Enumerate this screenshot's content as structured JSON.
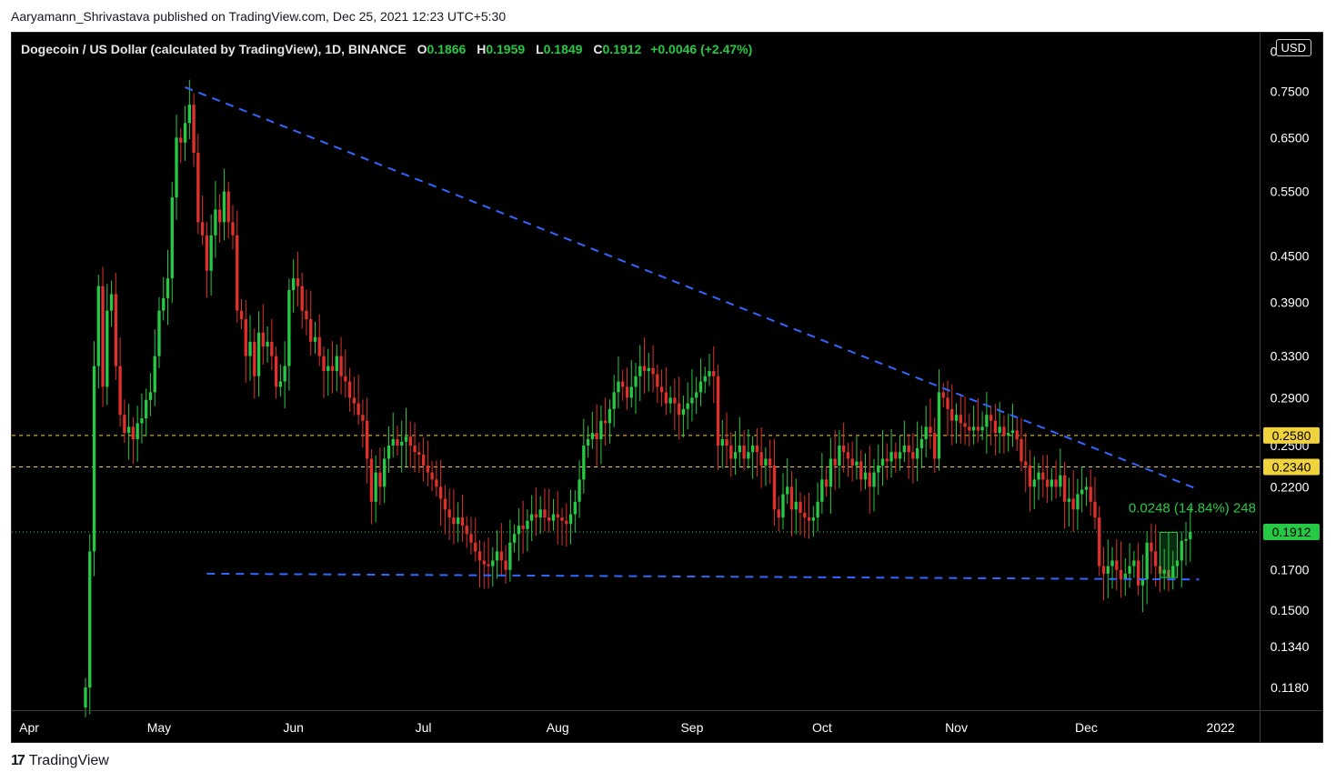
{
  "attribution": "Aaryamann_Shrivastava published on TradingView.com, Dec 25, 2021 12:23 UTC+5:30",
  "header": {
    "symbol": "Dogecoin / US Dollar (calculated by TradingView), 1D, BINANCE",
    "o_label": "O",
    "o_value": "0.1866",
    "h_label": "H",
    "h_value": "0.1959",
    "l_label": "L",
    "l_value": "0.1849",
    "c_label": "C",
    "c_value": "0.1912",
    "change": "+0.0046 (+2.47%)"
  },
  "currency": "USD",
  "brand": "TradingView",
  "colors": {
    "up": "#26c943",
    "down": "#e0302c",
    "trend": "#3366ff",
    "level": "#f0d23c",
    "price": "#26c943",
    "axis_text": "#ffffff"
  },
  "chart_data": {
    "type": "candlestick",
    "scale": "log",
    "ylim": [
      0.11,
      0.9
    ],
    "y_ticks": [
      0.85,
      0.75,
      0.65,
      0.55,
      0.45,
      0.39,
      0.33,
      0.29,
      0.25,
      0.22,
      0.17,
      0.15,
      0.134,
      0.118
    ],
    "y_tick_labels": [
      "0.8500",
      "0.7500",
      "0.6500",
      "0.5500",
      "0.4500",
      "0.3900",
      "0.3300",
      "0.2900",
      "0.2500",
      "0.2200",
      "0.1700",
      "0.1500",
      "0.1340",
      "0.1180"
    ],
    "x_labels": [
      "Apr",
      "May",
      "Jun",
      "Jul",
      "Aug",
      "Sep",
      "Oct",
      "Nov",
      "Dec",
      "2022"
    ],
    "x_label_dates": [
      "2021-04-01",
      "2021-05-01",
      "2021-06-01",
      "2021-07-01",
      "2021-08-01",
      "2021-09-01",
      "2021-10-01",
      "2021-11-01",
      "2021-12-01",
      "2022-01-01"
    ],
    "xlim": [
      "2021-03-28",
      "2022-01-10"
    ],
    "horizontal_levels": [
      {
        "value": 0.258,
        "label": "0.2580"
      },
      {
        "value": 0.234,
        "label": "0.2340"
      }
    ],
    "last_price": {
      "value": 0.1912,
      "label": "0.1912"
    },
    "trendlines": [
      {
        "name": "descending resistance",
        "start": [
          "2021-05-07",
          0.76
        ],
        "end": [
          "2021-12-27",
          0.218
        ]
      },
      {
        "name": "horizontal support",
        "start": [
          "2021-05-12",
          0.168
        ],
        "end": [
          "2021-12-27",
          0.165
        ]
      }
    ],
    "measure": {
      "label": "0.0248 (14.84%) 248",
      "from": [
        "2021-12-18",
        0.166
      ],
      "to": [
        "2021-12-22",
        0.191
      ]
    },
    "closes": [
      [
        "2021-04-14",
        0.118
      ],
      [
        "2021-04-15",
        0.18
      ],
      [
        "2021-04-16",
        0.32
      ],
      [
        "2021-04-17",
        0.41
      ],
      [
        "2021-04-18",
        0.3
      ],
      [
        "2021-04-19",
        0.38
      ],
      [
        "2021-04-20",
        0.4
      ],
      [
        "2021-04-21",
        0.32
      ],
      [
        "2021-04-22",
        0.275
      ],
      [
        "2021-04-23",
        0.26
      ],
      [
        "2021-04-24",
        0.265
      ],
      [
        "2021-04-25",
        0.255
      ],
      [
        "2021-04-26",
        0.268
      ],
      [
        "2021-04-27",
        0.272
      ],
      [
        "2021-04-28",
        0.288
      ],
      [
        "2021-04-29",
        0.295
      ],
      [
        "2021-04-30",
        0.33
      ],
      [
        "2021-05-01",
        0.38
      ],
      [
        "2021-05-02",
        0.395
      ],
      [
        "2021-05-03",
        0.42
      ],
      [
        "2021-05-04",
        0.54
      ],
      [
        "2021-05-05",
        0.65
      ],
      [
        "2021-05-06",
        0.64
      ],
      [
        "2021-05-07",
        0.68
      ],
      [
        "2021-05-08",
        0.72
      ],
      [
        "2021-05-09",
        0.62
      ],
      [
        "2021-05-10",
        0.5
      ],
      [
        "2021-05-11",
        0.48
      ],
      [
        "2021-05-12",
        0.43
      ],
      [
        "2021-05-13",
        0.48
      ],
      [
        "2021-05-14",
        0.52
      ],
      [
        "2021-05-15",
        0.5
      ],
      [
        "2021-05-16",
        0.55
      ],
      [
        "2021-05-17",
        0.5
      ],
      [
        "2021-05-18",
        0.48
      ],
      [
        "2021-05-19",
        0.38
      ],
      [
        "2021-05-20",
        0.37
      ],
      [
        "2021-05-21",
        0.33
      ],
      [
        "2021-05-22",
        0.345
      ],
      [
        "2021-05-23",
        0.31
      ],
      [
        "2021-05-24",
        0.355
      ],
      [
        "2021-05-25",
        0.34
      ],
      [
        "2021-05-26",
        0.345
      ],
      [
        "2021-05-27",
        0.33
      ],
      [
        "2021-05-28",
        0.3
      ],
      [
        "2021-05-29",
        0.305
      ],
      [
        "2021-05-30",
        0.32
      ],
      [
        "2021-05-31",
        0.405
      ],
      [
        "2021-06-01",
        0.42
      ],
      [
        "2021-06-02",
        0.41
      ],
      [
        "2021-06-03",
        0.38
      ],
      [
        "2021-06-04",
        0.37
      ],
      [
        "2021-06-05",
        0.345
      ],
      [
        "2021-06-06",
        0.35
      ],
      [
        "2021-06-07",
        0.33
      ],
      [
        "2021-06-08",
        0.315
      ],
      [
        "2021-06-09",
        0.32
      ],
      [
        "2021-06-10",
        0.315
      ],
      [
        "2021-06-11",
        0.33
      ],
      [
        "2021-06-12",
        0.31
      ],
      [
        "2021-06-13",
        0.305
      ],
      [
        "2021-06-14",
        0.29
      ],
      [
        "2021-06-15",
        0.285
      ],
      [
        "2021-06-16",
        0.275
      ],
      [
        "2021-06-17",
        0.27
      ],
      [
        "2021-06-18",
        0.24
      ],
      [
        "2021-06-19",
        0.21
      ],
      [
        "2021-06-20",
        0.23
      ],
      [
        "2021-06-21",
        0.22
      ],
      [
        "2021-06-22",
        0.24
      ],
      [
        "2021-06-23",
        0.25
      ],
      [
        "2021-06-24",
        0.255
      ],
      [
        "2021-06-25",
        0.25
      ],
      [
        "2021-06-26",
        0.253
      ],
      [
        "2021-06-27",
        0.257
      ],
      [
        "2021-06-28",
        0.25
      ],
      [
        "2021-06-29",
        0.245
      ],
      [
        "2021-06-30",
        0.243
      ],
      [
        "2021-07-01",
        0.235
      ],
      [
        "2021-07-02",
        0.23
      ],
      [
        "2021-07-03",
        0.225
      ],
      [
        "2021-07-04",
        0.22
      ],
      [
        "2021-07-05",
        0.212
      ],
      [
        "2021-07-06",
        0.205
      ],
      [
        "2021-07-07",
        0.2
      ],
      [
        "2021-07-08",
        0.196
      ],
      [
        "2021-07-09",
        0.2
      ],
      [
        "2021-07-10",
        0.195
      ],
      [
        "2021-07-11",
        0.19
      ],
      [
        "2021-07-12",
        0.185
      ],
      [
        "2021-07-13",
        0.18
      ],
      [
        "2021-07-14",
        0.175
      ],
      [
        "2021-07-15",
        0.173
      ],
      [
        "2021-07-16",
        0.172
      ],
      [
        "2021-07-17",
        0.175
      ],
      [
        "2021-07-18",
        0.18
      ],
      [
        "2021-07-19",
        0.175
      ],
      [
        "2021-07-20",
        0.17
      ],
      [
        "2021-07-21",
        0.185
      ],
      [
        "2021-07-22",
        0.19
      ],
      [
        "2021-07-23",
        0.195
      ],
      [
        "2021-07-24",
        0.193
      ],
      [
        "2021-07-25",
        0.198
      ],
      [
        "2021-07-26",
        0.202
      ],
      [
        "2021-07-27",
        0.2
      ],
      [
        "2021-07-28",
        0.205
      ],
      [
        "2021-07-29",
        0.2
      ],
      [
        "2021-07-30",
        0.198
      ],
      [
        "2021-07-31",
        0.202
      ],
      [
        "2021-08-01",
        0.2
      ],
      [
        "2021-08-02",
        0.198
      ],
      [
        "2021-08-03",
        0.196
      ],
      [
        "2021-08-04",
        0.202
      ],
      [
        "2021-08-05",
        0.21
      ],
      [
        "2021-08-06",
        0.225
      ],
      [
        "2021-08-07",
        0.25
      ],
      [
        "2021-08-08",
        0.255
      ],
      [
        "2021-08-09",
        0.26
      ],
      [
        "2021-08-10",
        0.255
      ],
      [
        "2021-08-11",
        0.27
      ],
      [
        "2021-08-12",
        0.268
      ],
      [
        "2021-08-13",
        0.28
      ],
      [
        "2021-08-14",
        0.295
      ],
      [
        "2021-08-15",
        0.305
      ],
      [
        "2021-08-16",
        0.3
      ],
      [
        "2021-08-17",
        0.29
      ],
      [
        "2021-08-18",
        0.3
      ],
      [
        "2021-08-19",
        0.31
      ],
      [
        "2021-08-20",
        0.32
      ],
      [
        "2021-08-21",
        0.315
      ],
      [
        "2021-08-22",
        0.318
      ],
      [
        "2021-08-23",
        0.312
      ],
      [
        "2021-08-24",
        0.3
      ],
      [
        "2021-08-25",
        0.295
      ],
      [
        "2021-08-26",
        0.285
      ],
      [
        "2021-08-27",
        0.29
      ],
      [
        "2021-08-28",
        0.285
      ],
      [
        "2021-08-29",
        0.275
      ],
      [
        "2021-08-30",
        0.28
      ],
      [
        "2021-08-31",
        0.285
      ],
      [
        "2021-09-01",
        0.29
      ],
      [
        "2021-09-02",
        0.295
      ],
      [
        "2021-09-03",
        0.305
      ],
      [
        "2021-09-04",
        0.31
      ],
      [
        "2021-09-05",
        0.315
      ],
      [
        "2021-09-06",
        0.31
      ],
      [
        "2021-09-07",
        0.25
      ],
      [
        "2021-09-08",
        0.255
      ],
      [
        "2021-09-09",
        0.25
      ],
      [
        "2021-09-10",
        0.24
      ],
      [
        "2021-09-11",
        0.245
      ],
      [
        "2021-09-12",
        0.25
      ],
      [
        "2021-09-13",
        0.24
      ],
      [
        "2021-09-14",
        0.245
      ],
      [
        "2021-09-15",
        0.25
      ],
      [
        "2021-09-16",
        0.245
      ],
      [
        "2021-09-17",
        0.235
      ],
      [
        "2021-09-18",
        0.24
      ],
      [
        "2021-09-19",
        0.235
      ],
      [
        "2021-09-20",
        0.205
      ],
      [
        "2021-09-21",
        0.2
      ],
      [
        "2021-09-22",
        0.215
      ],
      [
        "2021-09-23",
        0.22
      ],
      [
        "2021-09-24",
        0.205
      ],
      [
        "2021-09-25",
        0.21
      ],
      [
        "2021-09-26",
        0.203
      ],
      [
        "2021-09-27",
        0.2
      ],
      [
        "2021-09-28",
        0.198
      ],
      [
        "2021-09-29",
        0.2
      ],
      [
        "2021-09-30",
        0.21
      ],
      [
        "2021-10-01",
        0.225
      ],
      [
        "2021-10-02",
        0.22
      ],
      [
        "2021-10-03",
        0.24
      ],
      [
        "2021-10-04",
        0.235
      ],
      [
        "2021-10-05",
        0.25
      ],
      [
        "2021-10-06",
        0.245
      ],
      [
        "2021-10-07",
        0.24
      ],
      [
        "2021-10-08",
        0.235
      ],
      [
        "2021-10-09",
        0.238
      ],
      [
        "2021-10-10",
        0.225
      ],
      [
        "2021-10-11",
        0.23
      ],
      [
        "2021-10-12",
        0.22
      ],
      [
        "2021-10-13",
        0.23
      ],
      [
        "2021-10-14",
        0.235
      ],
      [
        "2021-10-15",
        0.24
      ],
      [
        "2021-10-16",
        0.238
      ],
      [
        "2021-10-17",
        0.245
      ],
      [
        "2021-10-18",
        0.24
      ],
      [
        "2021-10-19",
        0.245
      ],
      [
        "2021-10-20",
        0.25
      ],
      [
        "2021-10-21",
        0.245
      ],
      [
        "2021-10-22",
        0.24
      ],
      [
        "2021-10-23",
        0.248
      ],
      [
        "2021-10-24",
        0.255
      ],
      [
        "2021-10-25",
        0.265
      ],
      [
        "2021-10-26",
        0.26
      ],
      [
        "2021-10-27",
        0.24
      ],
      [
        "2021-10-28",
        0.295
      ],
      [
        "2021-10-29",
        0.29
      ],
      [
        "2021-10-30",
        0.28
      ],
      [
        "2021-10-31",
        0.27
      ],
      [
        "2021-11-01",
        0.275
      ],
      [
        "2021-11-02",
        0.268
      ],
      [
        "2021-11-03",
        0.265
      ],
      [
        "2021-11-04",
        0.262
      ],
      [
        "2021-11-05",
        0.265
      ],
      [
        "2021-11-06",
        0.262
      ],
      [
        "2021-11-07",
        0.265
      ],
      [
        "2021-11-08",
        0.275
      ],
      [
        "2021-11-09",
        0.27
      ],
      [
        "2021-11-10",
        0.26
      ],
      [
        "2021-11-11",
        0.265
      ],
      [
        "2021-11-12",
        0.258
      ],
      [
        "2021-11-13",
        0.26
      ],
      [
        "2021-11-14",
        0.262
      ],
      [
        "2021-11-15",
        0.255
      ],
      [
        "2021-11-16",
        0.238
      ],
      [
        "2021-11-17",
        0.235
      ],
      [
        "2021-11-18",
        0.22
      ],
      [
        "2021-11-19",
        0.225
      ],
      [
        "2021-11-20",
        0.23
      ],
      [
        "2021-11-21",
        0.225
      ],
      [
        "2021-11-22",
        0.22
      ],
      [
        "2021-11-23",
        0.225
      ],
      [
        "2021-11-24",
        0.22
      ],
      [
        "2021-11-25",
        0.228
      ],
      [
        "2021-11-26",
        0.21
      ],
      [
        "2021-11-27",
        0.212
      ],
      [
        "2021-11-28",
        0.205
      ],
      [
        "2021-11-29",
        0.215
      ],
      [
        "2021-11-30",
        0.218
      ],
      [
        "2021-12-01",
        0.22
      ],
      [
        "2021-12-02",
        0.21
      ],
      [
        "2021-12-03",
        0.2
      ],
      [
        "2021-12-04",
        0.172
      ],
      [
        "2021-12-05",
        0.168
      ],
      [
        "2021-12-06",
        0.172
      ],
      [
        "2021-12-07",
        0.175
      ],
      [
        "2021-12-08",
        0.17
      ],
      [
        "2021-12-09",
        0.165
      ],
      [
        "2021-12-10",
        0.168
      ],
      [
        "2021-12-11",
        0.172
      ],
      [
        "2021-12-12",
        0.175
      ],
      [
        "2021-12-13",
        0.162
      ],
      [
        "2021-12-14",
        0.165
      ],
      [
        "2021-12-15",
        0.185
      ],
      [
        "2021-12-16",
        0.18
      ],
      [
        "2021-12-17",
        0.172
      ],
      [
        "2021-12-18",
        0.168
      ],
      [
        "2021-12-19",
        0.17
      ],
      [
        "2021-12-20",
        0.166
      ],
      [
        "2021-12-21",
        0.172
      ],
      [
        "2021-12-22",
        0.175
      ],
      [
        "2021-12-23",
        0.186
      ],
      [
        "2021-12-24",
        0.187
      ],
      [
        "2021-12-25",
        0.1912
      ]
    ]
  }
}
